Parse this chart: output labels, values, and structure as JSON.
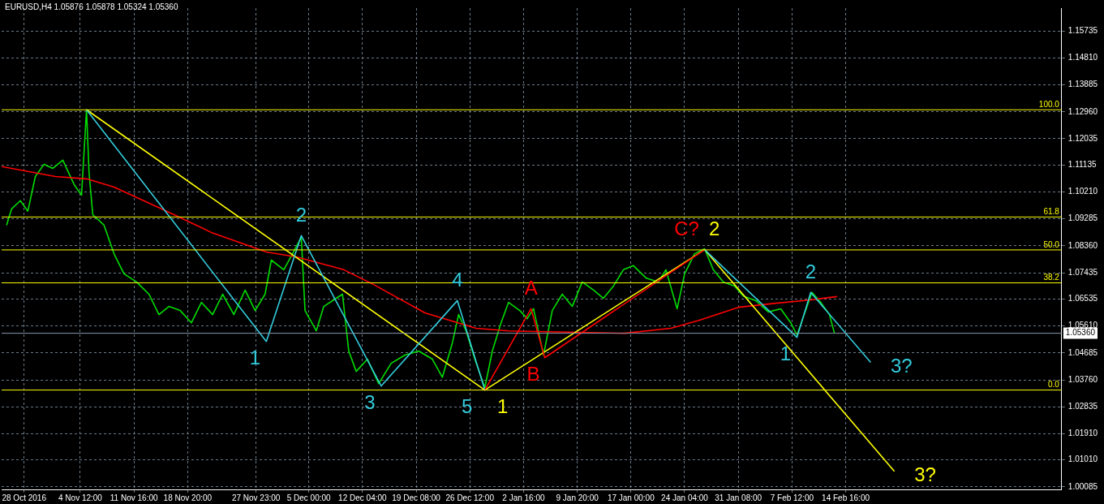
{
  "chart_data": {
    "type": "line",
    "title": "EURUSD,H4 1.05876 1.05878 1.05324 1.05360",
    "xlim": [
      "2016-10-25T00:00",
      "2017-03-15T12:00"
    ],
    "xticks": [
      {
        "value": "2016-10-28T00:00",
        "label": "28 Oct 2016"
      },
      {
        "value": "2016-11-04T12:00",
        "label": "4 Nov 12:00"
      },
      {
        "value": "2016-11-11T16:00",
        "label": "11 Nov 16:00"
      },
      {
        "value": "2016-11-18T20:00",
        "label": "18 Nov 20:00"
      },
      {
        "value": "2016-11-27T23:00",
        "label": "27 Nov 23:00"
      },
      {
        "value": "2016-12-05T00:00",
        "label": "5 Dec 00:00"
      },
      {
        "value": "2016-12-12T04:00",
        "label": "12 Dec 04:00"
      },
      {
        "value": "2016-12-19T08:00",
        "label": "19 Dec 08:00"
      },
      {
        "value": "2016-12-26T12:00",
        "label": "26 Dec 12:00"
      },
      {
        "value": "2017-01-02T16:00",
        "label": "2 Jan 16:00"
      },
      {
        "value": "2017-01-09T20:00",
        "label": "9 Jan 20:00"
      },
      {
        "value": "2017-01-17T00:00",
        "label": "17 Jan 00:00"
      },
      {
        "value": "2017-01-24T04:00",
        "label": "24 Jan 04:00"
      },
      {
        "value": "2017-01-31T08:00",
        "label": "31 Jan 08:00"
      },
      {
        "value": "2017-02-07T12:00",
        "label": "7 Feb 12:00"
      },
      {
        "value": "2017-02-14T16:00",
        "label": "14 Feb 16:00"
      }
    ],
    "ylim": [
      1.0,
      1.1652
    ],
    "yticks": [
      {
        "value": 1.00085,
        "label": "1.00085"
      },
      {
        "value": 1.0101,
        "label": "1.01010"
      },
      {
        "value": 1.0191,
        "label": "1.01910"
      },
      {
        "value": 1.02835,
        "label": "1.02835"
      },
      {
        "value": 1.0376,
        "label": "1.03760"
      },
      {
        "value": 1.04685,
        "label": "1.04685"
      },
      {
        "value": 1.0561,
        "label": "1.05610"
      },
      {
        "value": 1.06535,
        "label": "1.06535"
      },
      {
        "value": 1.07435,
        "label": "1.07435"
      },
      {
        "value": 1.0836,
        "label": "1.08360"
      },
      {
        "value": 1.09285,
        "label": "1.09285"
      },
      {
        "value": 1.1021,
        "label": "1.10210"
      },
      {
        "value": 1.11135,
        "label": "1.11135"
      },
      {
        "value": 1.12035,
        "label": "1.12035"
      },
      {
        "value": 1.1296,
        "label": "1.12960"
      },
      {
        "value": 1.13885,
        "label": "1.13885"
      },
      {
        "value": 1.1481,
        "label": "1.14810"
      },
      {
        "value": 1.15735,
        "label": "1.15735"
      }
    ],
    "grid": true,
    "legend": false,
    "ref_lines": [
      {
        "axis": "y",
        "value": 1.1303,
        "color": "#ffff00"
      },
      {
        "axis": "y",
        "value": 1.0935,
        "color": "#ffff00"
      },
      {
        "axis": "y",
        "value": 1.0822,
        "color": "#ffff00"
      },
      {
        "axis": "y",
        "value": 1.0709,
        "color": "#ffff00"
      },
      {
        "axis": "y",
        "value": 1.0341,
        "color": "#ffff00"
      },
      {
        "axis": "y",
        "value": 1.0536,
        "label": "1.05360",
        "color": "#8899aa"
      }
    ],
    "annotations": [
      {
        "text": "100.0",
        "x": "2017-03-15T12:00",
        "y": 1.1303
      },
      {
        "text": "61.8",
        "x": "2017-03-15T12:00",
        "y": 1.0935
      },
      {
        "text": "50.0",
        "x": "2017-03-15T12:00",
        "y": 1.0822
      },
      {
        "text": "38.2",
        "x": "2017-03-15T12:00",
        "y": 1.0709
      },
      {
        "text": "0.0",
        "x": "2017-03-15T12:00",
        "y": 1.0341
      },
      {
        "text": "1",
        "x": "2016-11-29T08:00",
        "y": 1.0508
      },
      {
        "text": "2",
        "x": "2016-12-04T00:00",
        "y": 1.0871
      },
      {
        "text": "3",
        "x": "2016-12-14T16:00",
        "y": 1.0355
      },
      {
        "text": "4",
        "x": "2016-12-24T20:00",
        "y": 1.0648
      },
      {
        "text": "1",
        "x": "2016-12-28T12:00",
        "y": 1.0341
      },
      {
        "text": "5",
        "x": "2016-12-28T12:00",
        "y": 1.0341
      },
      {
        "text": "A",
        "x": "2017-01-03T16:00",
        "y": 1.062
      },
      {
        "text": "B",
        "x": "2017-01-05T12:00",
        "y": 1.0452
      },
      {
        "text": "2",
        "x": "2017-01-26T20:00",
        "y": 1.0823
      },
      {
        "text": "C?",
        "x": "2017-01-26T20:00",
        "y": 1.0823
      },
      {
        "text": "1",
        "x": "2017-02-08T04:00",
        "y": 1.0522
      },
      {
        "text": "2",
        "x": "2017-02-10T00:00",
        "y": 1.0676
      },
      {
        "text": "3?",
        "x": "2017-02-18T00:00",
        "y": 1.0436
      },
      {
        "text": "3?",
        "x": "2017-02-21T04:00",
        "y": 1.0062
      }
    ],
    "series": [
      {
        "color": "#00dd00",
        "x": [
          "2016-10-25T16:00",
          "2016-10-26T08:00",
          "2016-10-27T12:00",
          "2016-10-28T12:00",
          "2016-10-29T12:00",
          "2016-10-30T16:00",
          "2016-10-31T20:00",
          "2016-11-02T04:00",
          "2016-11-03T16:00",
          "2016-11-04T16:00",
          "2016-11-05T08:00",
          "2016-11-05T16:00",
          "2016-11-06T04:00",
          "2016-11-07T16:00",
          "2016-11-09T00:00",
          "2016-11-10T08:00",
          "2016-11-12T00:00",
          "2016-11-13T16:00",
          "2016-11-15T00:00",
          "2016-11-16T08:00",
          "2016-11-17T20:00",
          "2016-11-19T08:00",
          "2016-11-20T16:00",
          "2016-11-22T04:00",
          "2016-11-23T12:00",
          "2016-11-25T00:00",
          "2016-11-26T12:00",
          "2016-11-27T20:00",
          "2016-11-29T04:00",
          "2016-11-30T00:00",
          "2016-12-01T16:00",
          "2016-12-02T20:00",
          "2016-12-04T00:00",
          "2016-12-04T12:00",
          "2016-12-06T00:00",
          "2016-12-07T00:00",
          "2016-12-08T16:00",
          "2016-12-09T12:00",
          "2016-12-10T08:00",
          "2016-12-11T08:00",
          "2016-12-12T20:00",
          "2016-12-14T08:00",
          "2016-12-16T00:00",
          "2016-12-17T20:00",
          "2016-12-19T16:00",
          "2016-12-21T12:00",
          "2016-12-22T20:00",
          "2016-12-24T04:00",
          "2016-12-25T00:00",
          "2016-12-26T00:00",
          "2016-12-27T04:00",
          "2016-12-28T12:00",
          "2016-12-29T12:00",
          "2016-12-30T16:00",
          "2016-12-31T16:00",
          "2017-01-02T04:00",
          "2017-01-03T04:00",
          "2017-01-04T00:00",
          "2017-01-05T08:00",
          "2017-01-06T12:00",
          "2017-01-07T20:00",
          "2017-01-09T04:00",
          "2017-01-10T12:00",
          "2017-01-12T00:00",
          "2017-01-13T08:00",
          "2017-01-14T16:00",
          "2017-01-16T00:00",
          "2017-01-17T08:00",
          "2017-01-19T00:00",
          "2017-01-20T16:00",
          "2017-01-21T16:00",
          "2017-01-23T04:00",
          "2017-01-24T04:00",
          "2017-01-25T12:00",
          "2017-01-26T20:00",
          "2017-01-28T00:00",
          "2017-01-29T08:00",
          "2017-01-30T20:00",
          "2017-02-01T00:00",
          "2017-02-02T16:00",
          "2017-02-04T08:00",
          "2017-02-06T00:00",
          "2017-02-07T08:00",
          "2017-02-08T04:00",
          "2017-02-10T04:00",
          "2017-02-11T08:00",
          "2017-02-12T12:00",
          "2017-02-13T04:00"
        ],
        "values": [
          1.0907,
          1.0963,
          1.0991,
          1.0955,
          1.1074,
          1.1116,
          1.1102,
          1.113,
          1.1047,
          1.101,
          1.1303,
          1.1088,
          1.0943,
          1.0907,
          1.0809,
          1.074,
          1.0712,
          1.067,
          1.06,
          1.0628,
          1.0614,
          1.0572,
          1.0642,
          1.06,
          1.067,
          1.06,
          1.0684,
          1.0614,
          1.067,
          1.0787,
          1.0754,
          1.0809,
          1.0865,
          1.0614,
          1.0544,
          1.0628,
          1.0656,
          1.067,
          1.0475,
          1.0405,
          1.0447,
          1.0363,
          1.0433,
          1.0461,
          1.0475,
          1.0447,
          1.0385,
          1.0503,
          1.06,
          1.0544,
          1.0447,
          1.0349,
          1.0475,
          1.0572,
          1.0642,
          1.0614,
          1.0586,
          1.062,
          1.0461,
          1.0614,
          1.067,
          1.0628,
          1.0712,
          1.0684,
          1.0656,
          1.0698,
          1.0754,
          1.0768,
          1.0726,
          1.0712,
          1.0754,
          1.062,
          1.074,
          1.0809,
          1.0826,
          1.0754,
          1.0712,
          1.0698,
          1.0664,
          1.0648,
          1.0609,
          1.062,
          1.0572,
          1.053,
          1.0676,
          1.0642,
          1.06,
          1.0536
        ]
      },
      {
        "color": "#ff0000",
        "x": [
          "2016-10-25T00:00",
          "2016-11-01T04:00",
          "2016-11-05T08:00",
          "2016-11-09T00:00",
          "2016-11-15T08:00",
          "2016-11-22T00:00",
          "2016-11-29T08:00",
          "2016-12-03T08:00",
          "2016-12-09T16:00",
          "2016-12-13T16:00",
          "2016-12-20T12:00",
          "2016-12-27T08:00",
          "2016-12-31T16:00",
          "2017-01-16T04:00",
          "2017-01-22T08:00",
          "2017-01-26T04:00",
          "2017-01-31T08:00",
          "2017-02-05T08:00",
          "2017-02-09T20:00",
          "2017-02-13T12:00"
        ],
        "values": [
          1.1108,
          1.1074,
          1.1066,
          1.1038,
          1.0963,
          1.0882,
          1.0815,
          1.0798,
          1.0754,
          1.0703,
          1.0606,
          1.0553,
          1.0544,
          1.0536,
          1.0553,
          1.0581,
          1.0625,
          1.0639,
          1.065,
          1.0662
        ]
      },
      {
        "color": "#ffff00",
        "x": [
          "2016-11-05T08:00",
          "2016-12-28T12:00",
          "2017-01-26T20:00",
          "2017-02-21T04:00"
        ],
        "values": [
          1.1303,
          1.0341,
          1.0823,
          1.0062
        ]
      },
      {
        "color": "#33ccdd",
        "x": [
          "2016-11-05T08:00",
          "2016-11-29T08:00",
          "2016-12-04T00:00",
          "2016-12-14T16:00",
          "2016-12-24T20:00",
          "2016-12-28T12:00"
        ],
        "values": [
          1.1303,
          1.0508,
          1.0871,
          1.0355,
          1.0648,
          1.0341
        ]
      },
      {
        "color": "#ff0000",
        "x": [
          "2016-12-28T12:00",
          "2017-01-03T16:00",
          "2017-01-05T12:00",
          "2017-01-26T20:00"
        ],
        "values": [
          1.0341,
          1.062,
          1.0452,
          1.0823
        ]
      },
      {
        "color": "#33ccdd",
        "x": [
          "2017-01-26T20:00",
          "2017-02-08T04:00",
          "2017-02-10T00:00",
          "2017-02-18T00:00"
        ],
        "values": [
          1.0823,
          1.0522,
          1.0676,
          1.0436
        ]
      }
    ]
  }
}
